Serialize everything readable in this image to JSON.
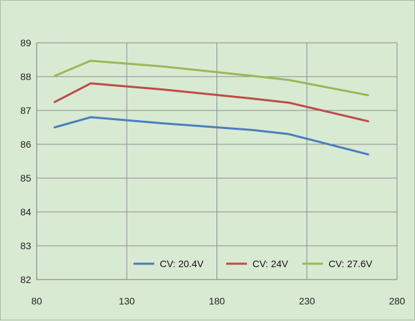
{
  "chart_data": {
    "type": "line",
    "title": "",
    "xlabel": "",
    "ylabel": "",
    "xlim": [
      80,
      280
    ],
    "ylim": [
      82,
      89
    ],
    "xticks": [
      80,
      130,
      180,
      230,
      280
    ],
    "yticks": [
      82,
      83,
      84,
      85,
      86,
      87,
      88,
      89
    ],
    "grid": true,
    "legend_position": "bottom-right",
    "series": [
      {
        "name": "CV: 20.4V",
        "color": "#4a7ebb",
        "points": [
          [
            90,
            86.5
          ],
          [
            110,
            86.8
          ],
          [
            150,
            86.62
          ],
          [
            200,
            86.42
          ],
          [
            220,
            86.3
          ],
          [
            264,
            85.7
          ]
        ]
      },
      {
        "name": "CV: 24V",
        "color": "#be4b48",
        "points": [
          [
            90,
            87.25
          ],
          [
            110,
            87.8
          ],
          [
            150,
            87.62
          ],
          [
            200,
            87.35
          ],
          [
            220,
            87.23
          ],
          [
            264,
            86.68
          ]
        ]
      },
      {
        "name": "CV: 27.6V",
        "color": "#98b954",
        "points": [
          [
            90,
            88.02
          ],
          [
            110,
            88.47
          ],
          [
            150,
            88.3
          ],
          [
            200,
            88.02
          ],
          [
            220,
            87.9
          ],
          [
            264,
            87.45
          ]
        ]
      }
    ]
  }
}
